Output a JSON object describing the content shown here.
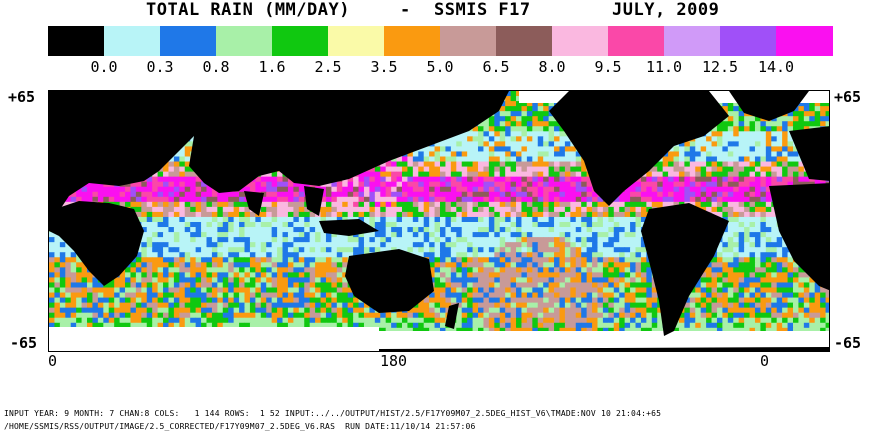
{
  "title": {
    "main": "TOTAL RAIN (MM/DAY)",
    "separator": "-",
    "sensor": "SSMIS F17",
    "period": "JULY, 2009"
  },
  "legend": {
    "colors": [
      "#000000",
      "#b8f4f7",
      "#1f78e8",
      "#a8f0a8",
      "#10c810",
      "#fafaa8",
      "#fa9a10",
      "#c89a98",
      "#8c5c5a",
      "#fab8e0",
      "#fa48a8",
      "#d09af8",
      "#a050f8",
      "#fa10f0"
    ],
    "labels": [
      "0.0",
      "0.3",
      "0.8",
      "1.6",
      "2.5",
      "3.5",
      "5.0",
      "6.5",
      "8.0",
      "9.5",
      "11.0",
      "12.5",
      "14.0"
    ]
  },
  "map": {
    "lat_top_left": "+65",
    "lat_top_right": "+65",
    "lat_bottom_left": "-65",
    "lat_bottom_right": "-65",
    "lon_labels": [
      "0",
      "180",
      "0"
    ],
    "land_color": "#000000",
    "missing_color": "#ffffff"
  },
  "footer": {
    "line1": "INPUT YEAR: 9 MONTH: 7 CHAN:8 COLS:   1 144 ROWS:  1 52 INPUT:../../OUTPUT/HIST/2.5/F17Y09M07_2.5DEG_HIST_V6\\TMADE:NOV 10 21:04:+65",
    "line2": "/HOME/SSMIS/RSS/OUTPUT/IMAGE/2.5_CORRECTED/F17Y09M07_2.5DEG_V6.RAS  RUN DATE:11/10/14 21:57:06"
  }
}
